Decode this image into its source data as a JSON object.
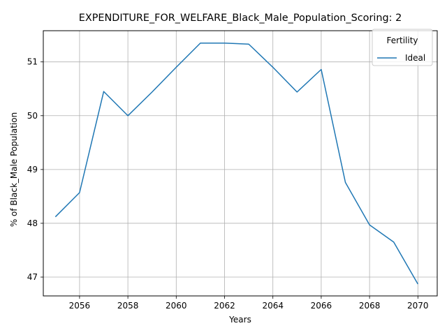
{
  "chart_data": {
    "type": "line",
    "title": "EXPENDITURE_FOR_WELFARE_Black_Male_Population_Scoring: 2",
    "xlabel": "Years",
    "ylabel": "% of Black_Male Population",
    "xlim": [
      2054.5,
      2070.8
    ],
    "ylim": [
      46.65,
      51.58
    ],
    "xticks": [
      2056,
      2058,
      2060,
      2062,
      2064,
      2066,
      2068,
      2070
    ],
    "yticks": [
      47,
      48,
      49,
      50,
      51
    ],
    "grid": true,
    "legend": {
      "title": "Fertility",
      "position": "top-right"
    },
    "series": [
      {
        "name": "Ideal",
        "color": "#1f77b4",
        "x": [
          2055,
          2056,
          2057,
          2058,
          2059,
          2060,
          2061,
          2062,
          2063,
          2064,
          2065,
          2066,
          2067,
          2068,
          2069,
          2070
        ],
        "y": [
          48.12,
          48.57,
          50.45,
          50.0,
          50.44,
          50.9,
          51.35,
          51.35,
          51.33,
          50.9,
          50.44,
          50.86,
          48.76,
          47.97,
          47.65,
          46.87
        ]
      }
    ]
  }
}
